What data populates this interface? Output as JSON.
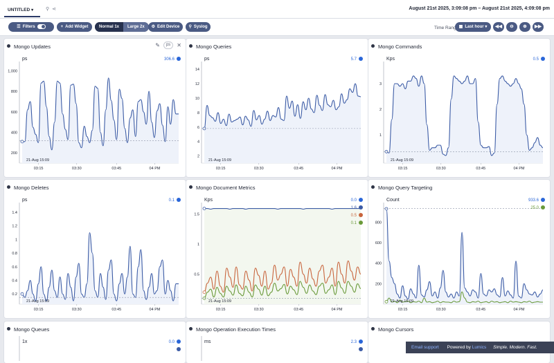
{
  "tab": {
    "label": "UNTITLED"
  },
  "daterange": "August 21st 2025, 3:09:08 pm – August 21st 2025, 4:09:08 pm",
  "toolbar": {
    "filters": "Filters",
    "add_widget": "Add Widget",
    "size_normal": "Normal 1x",
    "size_large": "Large 2x",
    "edit_device": "Edit Device",
    "syslog": "Syslog",
    "time_range_label": "Time Range:",
    "time_range_value": "Last hour"
  },
  "colors": {
    "blue": "#3b5ba5",
    "orange": "#c8643c",
    "green": "#6a9a3a",
    "legend_blue": "#2a66d8"
  },
  "xticks": [
    "03:15",
    "03:30",
    "03:45",
    "04 PM"
  ],
  "marker_label": "21-Aug 15:09",
  "cards": [
    {
      "title": "Mongo Updates",
      "unit": "ps",
      "yticks": [
        "1,000",
        "800",
        "600",
        "400",
        "200"
      ],
      "ymin": 100,
      "ymax": 1050,
      "threshold": 320,
      "legend": [
        "306.6"
      ],
      "show_edit": true,
      "unit_chip": "ps",
      "series": [
        [
          310,
          310,
          620,
          700,
          450,
          380,
          300,
          880,
          900,
          650,
          360,
          230,
          500,
          900,
          880,
          580,
          430,
          330,
          860,
          870,
          680,
          300,
          250,
          460,
          360,
          300,
          420,
          850,
          830,
          400,
          270,
          620,
          930,
          710,
          520,
          330,
          820,
          730,
          440,
          300,
          540,
          620,
          360,
          700,
          720,
          600,
          480,
          800,
          500,
          350,
          610,
          680,
          470,
          310,
          650,
          480,
          720,
          580,
          580
        ]
      ]
    },
    {
      "title": "Mongo Queries",
      "unit": "ps",
      "yticks": [
        "14",
        "12",
        "10",
        "8",
        "6",
        "4",
        "2"
      ],
      "ymin": 1,
      "ymax": 14.5,
      "threshold": 5.8,
      "legend": [
        "5.7"
      ],
      "series": [
        [
          5.8,
          9.0,
          7.6,
          7.3,
          6.8,
          8.0,
          6.5,
          7.1,
          6.2,
          7.8,
          6.7,
          6.9,
          7.1,
          7.4,
          6.3,
          7.5,
          7.0,
          6.1,
          8.3,
          7.0,
          7.6,
          6.4,
          7.1,
          8.2,
          6.9,
          7.6,
          7.4,
          8.7,
          7.1,
          6.9,
          10.3,
          8.6,
          9.6,
          7.5,
          9.1,
          7.2,
          9.5,
          8.4,
          10.0,
          8.5,
          8.0,
          10.4,
          9.0,
          8.3,
          10.5,
          9.1,
          8.8,
          9.7,
          8.4,
          8.8,
          10.6,
          9.3,
          9.8,
          11.3,
          10.8,
          12.0,
          10.3,
          10.2
        ]
      ]
    },
    {
      "title": "Mongo Commands",
      "unit": "Kps",
      "yticks": [
        "3",
        "2",
        "1"
      ],
      "ymin": -0.1,
      "ymax": 3.7,
      "threshold": 0.35,
      "legend": [
        "0.5"
      ],
      "series": [
        [
          0.35,
          0.3,
          1.6,
          3.0,
          3.0,
          2.9,
          3.0,
          2.8,
          3.1,
          3.1,
          3.3,
          3.2,
          2.9,
          3.3,
          3.0,
          1.4,
          0.4,
          0.5,
          0.5,
          0.6,
          0.6,
          0.25,
          0.2,
          0.5,
          2.4,
          3.3,
          3.2,
          3.1,
          3.0,
          3.1,
          3.3,
          3.0,
          3.0,
          3.2,
          1.5,
          0.6,
          0.5,
          0.5,
          0.55,
          0.2,
          0.3,
          2.2,
          3.2,
          3.3,
          3.1,
          3.0,
          2.9,
          3.0,
          3.2,
          3.0,
          2.8,
          2.2,
          1.0,
          0.4,
          0.5,
          0.7,
          0.9,
          0.6,
          0.5
        ]
      ]
    },
    {
      "title": "Mongo Deletes",
      "unit": "ps",
      "yticks": [
        "1.4",
        "1.2",
        "1",
        "0.8",
        "0.6",
        "0.4",
        "0.2"
      ],
      "ymin": 0.05,
      "ymax": 1.48,
      "threshold": 0.15,
      "legend": [
        "0.1"
      ],
      "series": [
        [
          0.2,
          0.15,
          0.25,
          0.4,
          0.2,
          0.1,
          0.35,
          0.6,
          0.2,
          0.1,
          0.3,
          0.55,
          0.25,
          0.15,
          0.45,
          0.2,
          0.12,
          0.5,
          0.3,
          0.1,
          0.45,
          0.65,
          0.2,
          0.15,
          0.35,
          1.1,
          0.8,
          0.25,
          0.15,
          0.5,
          0.3,
          0.12,
          0.55,
          0.7,
          0.2,
          0.1,
          0.35,
          0.5,
          0.2,
          0.45,
          0.9,
          0.2,
          0.15,
          0.6,
          0.85,
          0.25,
          0.12,
          0.3,
          0.5,
          0.2,
          0.25,
          0.6,
          0.7,
          0.2,
          0.4,
          0.25,
          0.1,
          0.35,
          0.35
        ]
      ]
    },
    {
      "title": "Mongo Document Metrics",
      "unit": "Kps",
      "yticks": [
        "1.5",
        "1",
        "0.5"
      ],
      "ymin": 0.0,
      "ymax": 1.62,
      "threshold": 0.1,
      "legend": [
        "0.0",
        "1.6",
        "0.5",
        "0.1"
      ],
      "series": [
        [
          1.59,
          1.59,
          1.58,
          1.59,
          1.59,
          1.59,
          1.59,
          1.59,
          1.58,
          1.59,
          1.59,
          1.59,
          1.59,
          1.58,
          1.59,
          1.59,
          1.59,
          1.59,
          1.59,
          1.59,
          1.59,
          1.59,
          1.59,
          1.58,
          1.59,
          1.59,
          1.59,
          1.59,
          1.59,
          1.59,
          1.59,
          1.58,
          1.59,
          1.59,
          1.59,
          1.59,
          1.59,
          1.59,
          1.59,
          1.59,
          1.58,
          1.59,
          1.59,
          1.59,
          1.59,
          1.59,
          1.59,
          1.59,
          1.59,
          1.59
        ],
        [
          0.2,
          0.35,
          0.45,
          0.25,
          0.55,
          0.3,
          0.2,
          0.6,
          0.45,
          0.28,
          0.62,
          0.32,
          0.25,
          0.55,
          0.4,
          0.22,
          0.6,
          0.48,
          0.3,
          0.55,
          0.25,
          0.35,
          0.65,
          0.4,
          0.5,
          0.62,
          0.3,
          0.58,
          0.45,
          0.3,
          0.7,
          0.5,
          0.35,
          0.6,
          0.42,
          0.3,
          0.55,
          0.65,
          0.35,
          0.45,
          0.6,
          0.3,
          0.7,
          0.5,
          0.35,
          0.72,
          0.55,
          0.4,
          0.62,
          0.5
        ],
        [
          0.1,
          0.2,
          0.25,
          0.12,
          0.28,
          0.18,
          0.12,
          0.3,
          0.22,
          0.15,
          0.32,
          0.18,
          0.14,
          0.3,
          0.2,
          0.12,
          0.32,
          0.25,
          0.15,
          0.3,
          0.14,
          0.2,
          0.35,
          0.22,
          0.26,
          0.33,
          0.17,
          0.3,
          0.24,
          0.16,
          0.38,
          0.28,
          0.18,
          0.32,
          0.22,
          0.16,
          0.3,
          0.35,
          0.18,
          0.24,
          0.32,
          0.16,
          0.38,
          0.27,
          0.18,
          0.38,
          0.3,
          0.2,
          0.34,
          0.26
        ]
      ]
    },
    {
      "title": "Mongo Query Targeting",
      "unit": "Count",
      "yticks": [
        "800",
        "600",
        "400",
        "200"
      ],
      "ymin": 0,
      "ymax": 950,
      "threshold": 933.6,
      "legend": [
        "933.6",
        "25.0"
      ],
      "series": [
        [
          930,
          420,
          260,
          200,
          100,
          60,
          180,
          80,
          50,
          150,
          100,
          60,
          380,
          90,
          70,
          140,
          220,
          80,
          120,
          60,
          160,
          330,
          120,
          70,
          100,
          60,
          120,
          80,
          700,
          160,
          120,
          80,
          140,
          120,
          60,
          300,
          100,
          80,
          140,
          120,
          150,
          90,
          70,
          260,
          80,
          130,
          90,
          60,
          420,
          80,
          60,
          200,
          140,
          100,
          90,
          120,
          70,
          100,
          140
        ],
        [
          25,
          60,
          20,
          30,
          15,
          40,
          20,
          25,
          30,
          15,
          25,
          20,
          30,
          15,
          60,
          20,
          25,
          15,
          20,
          30,
          15,
          25,
          20,
          20,
          15,
          30,
          20,
          25,
          120,
          60,
          20,
          15,
          25,
          20,
          30,
          15,
          20,
          25,
          15,
          30,
          20,
          25,
          15,
          20,
          25,
          15,
          30,
          20,
          25,
          20,
          15,
          25,
          20,
          30,
          15,
          20,
          25,
          20,
          20
        ]
      ]
    }
  ],
  "bottom_cards": [
    {
      "title": "Mongo Queues",
      "unit": "1x",
      "legend": "0.0"
    },
    {
      "title": "Mongo Operation Execution Times",
      "unit": "ms",
      "legend": "2.3"
    },
    {
      "title": "Mongo Cursors",
      "unit": "",
      "legend": ""
    }
  ],
  "footer": {
    "email_support": "Email support",
    "powered_by": "Powered by",
    "brand": "Lumics",
    "tagline": "Simple. Modern. Fast."
  }
}
